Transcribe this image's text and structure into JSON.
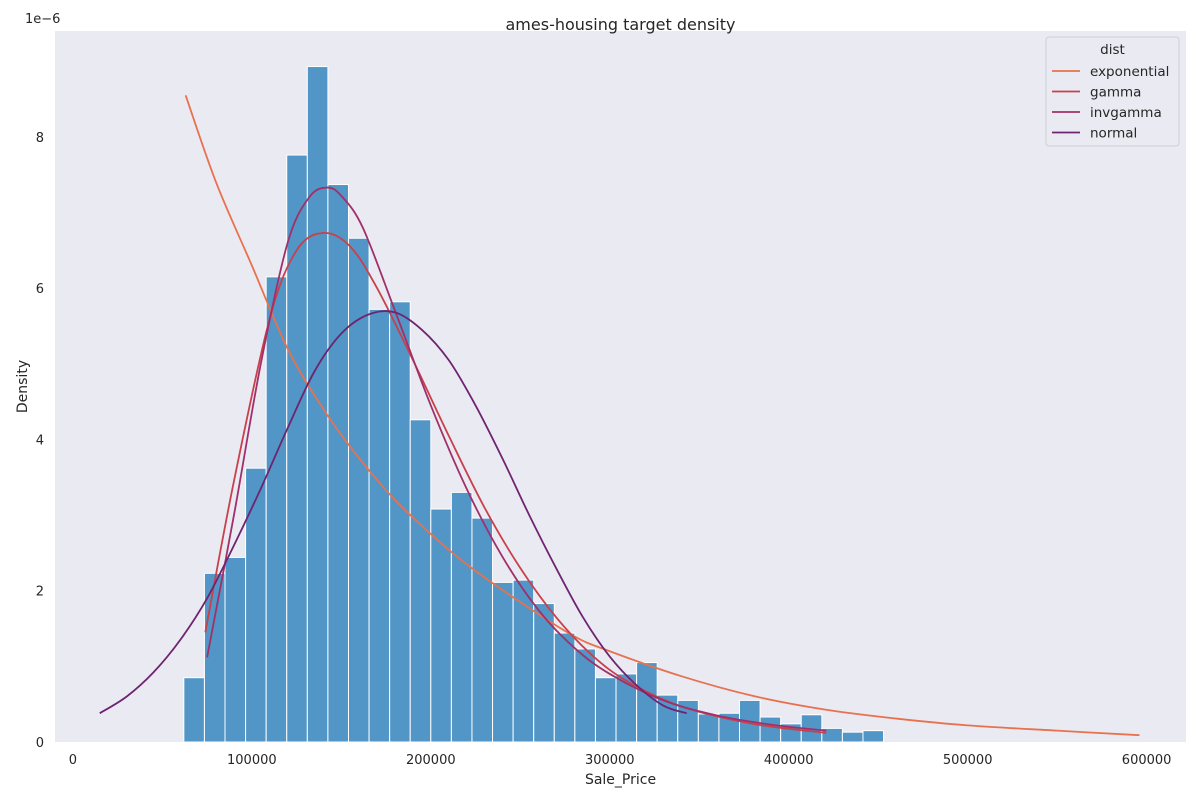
{
  "chart_data": {
    "type": "histogram",
    "title": "ames-housing target density",
    "xlabel": "Sale_Price",
    "ylabel": "Density",
    "y_offset_label": "1e−6",
    "xlim": [
      -10000,
      622000
    ],
    "ylim": [
      0,
      9.4
    ],
    "x_ticks": [
      0,
      100000,
      200000,
      300000,
      400000,
      500000,
      600000
    ],
    "x_tick_labels": [
      "0",
      "100000",
      "200000",
      "300000",
      "400000",
      "500000",
      "600000"
    ],
    "y_ticks": [
      0,
      2,
      4,
      6,
      8
    ],
    "y_tick_labels": [
      "0",
      "2",
      "4",
      "6",
      "8"
    ],
    "grid": false,
    "background": "#eaeaf2",
    "bar_color": "#5196c6",
    "histogram": {
      "bin_start": 62000,
      "bin_width": 11500,
      "values": [
        0.85,
        2.23,
        2.44,
        3.62,
        6.15,
        7.76,
        8.93,
        7.37,
        6.66,
        5.72,
        5.82,
        4.26,
        3.08,
        3.3,
        2.96,
        2.11,
        2.14,
        1.83,
        1.44,
        1.23,
        0.85,
        0.9,
        1.05,
        0.62,
        0.55,
        0.37,
        0.38,
        0.55,
        0.33,
        0.24,
        0.36,
        0.18,
        0.13,
        0.15
      ]
    },
    "legend": {
      "title": "dist",
      "position": "top-right",
      "entries": [
        {
          "name": "exponential",
          "color": "#e8714f"
        },
        {
          "name": "gamma",
          "color": "#c9404d"
        },
        {
          "name": "invgamma",
          "color": "#a1306a"
        },
        {
          "name": "normal",
          "color": "#6f2470"
        }
      ]
    },
    "series": [
      {
        "name": "exponential",
        "color": "#e8714f",
        "x": [
          63000,
          80000,
          100000,
          120000,
          140000,
          160000,
          180000,
          200000,
          220000,
          250000,
          280000,
          300000,
          340000,
          380000,
          420000,
          460000,
          500000,
          550000,
          596000
        ],
        "y": [
          8.55,
          7.4,
          6.3,
          5.2,
          4.4,
          3.75,
          3.2,
          2.75,
          2.35,
          1.85,
          1.4,
          1.2,
          0.87,
          0.61,
          0.43,
          0.31,
          0.22,
          0.15,
          0.09
        ]
      },
      {
        "name": "gamma",
        "color": "#c9404d",
        "x": [
          74000,
          90000,
          110000,
          125000,
          140000,
          155000,
          170000,
          190000,
          210000,
          230000,
          250000,
          270000,
          290000,
          310000,
          340000,
          380000,
          421000
        ],
        "y": [
          1.45,
          3.45,
          5.6,
          6.5,
          6.73,
          6.55,
          6.0,
          5.05,
          4.05,
          3.1,
          2.3,
          1.65,
          1.15,
          0.8,
          0.47,
          0.24,
          0.12
        ]
      },
      {
        "name": "invgamma",
        "color": "#a1306a",
        "x": [
          75000,
          90000,
          105000,
          120000,
          132000,
          142000,
          150000,
          162000,
          180000,
          200000,
          220000,
          240000,
          260000,
          280000,
          300000,
          330000,
          360000,
          390000,
          421000
        ],
        "y": [
          1.12,
          3.0,
          5.0,
          6.6,
          7.2,
          7.33,
          7.22,
          6.8,
          5.7,
          4.45,
          3.35,
          2.45,
          1.75,
          1.25,
          0.9,
          0.55,
          0.35,
          0.23,
          0.15
        ]
      },
      {
        "name": "normal",
        "color": "#6f2470",
        "x": [
          15000,
          30000,
          45000,
          60000,
          75000,
          90000,
          105000,
          120000,
          135000,
          150000,
          165000,
          180000,
          195000,
          210000,
          225000,
          240000,
          255000,
          270000,
          285000,
          300000,
          315000,
          330000,
          343000
        ],
        "y": [
          0.38,
          0.6,
          0.92,
          1.35,
          1.9,
          2.6,
          3.35,
          4.15,
          4.9,
          5.4,
          5.65,
          5.68,
          5.45,
          5.05,
          4.45,
          3.75,
          3.0,
          2.3,
          1.65,
          1.13,
          0.75,
          0.48,
          0.38
        ]
      }
    ]
  }
}
